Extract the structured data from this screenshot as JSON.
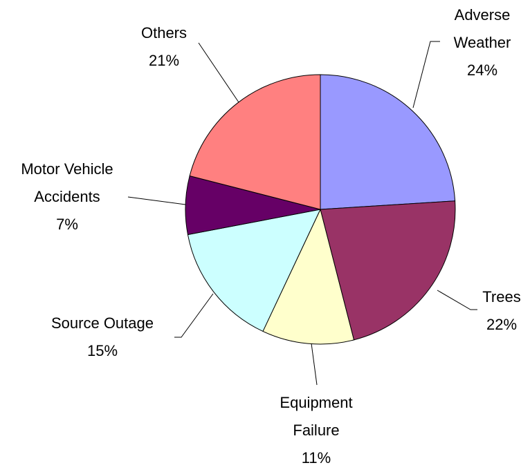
{
  "chart_data": {
    "type": "pie",
    "categories": [
      "Adverse Weather",
      "Trees",
      "Equipment Failure",
      "Source Outage",
      "Motor Vehicle Accidents",
      "Others"
    ],
    "values": [
      24,
      22,
      11,
      15,
      7,
      21
    ],
    "value_labels": [
      "24%",
      "22%",
      "11%",
      "15%",
      "7%",
      "21%"
    ],
    "colors": [
      "#9999ff",
      "#993366",
      "#ffffcc",
      "#ccffff",
      "#660066",
      "#ff8080"
    ]
  }
}
